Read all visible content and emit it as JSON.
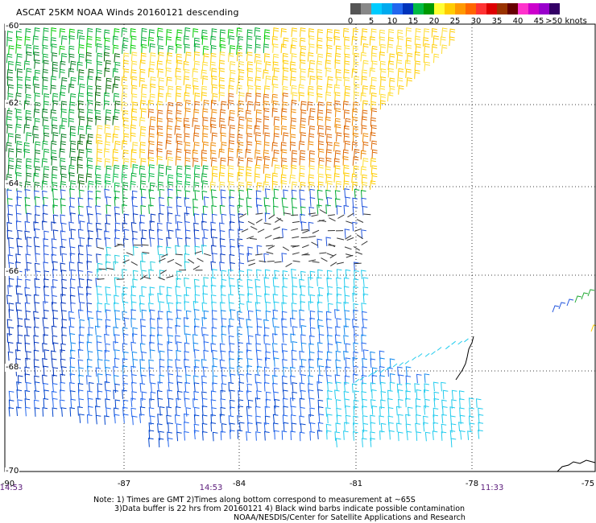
{
  "title": "ASCAT 25KM NOAA Winds 20160121 descending",
  "colorbar": {
    "colors": [
      "#555555",
      "#888888",
      "#00ccff",
      "#00aaee",
      "#2266ee",
      "#0033bb",
      "#00bb44",
      "#009900",
      "#ffff33",
      "#ffcc00",
      "#ff9900",
      "#ff6600",
      "#ff3333",
      "#dd0000",
      "#993300",
      "#660000",
      "#ff33cc",
      "#cc00cc",
      "#9900cc",
      "#330066"
    ],
    "ticks": [
      "0",
      "5",
      "10",
      "15",
      "20",
      "25",
      "30",
      "35",
      "40",
      "45",
      ">50 knots"
    ]
  },
  "map": {
    "lat_labels": [
      "-60",
      "-62",
      "-64",
      "-66",
      "-68",
      "-70"
    ],
    "lon_labels": [
      "-90",
      "-87",
      "-84",
      "-81",
      "-78",
      "-75"
    ],
    "time_labels": [
      "14:53",
      "14:53",
      "11:33"
    ]
  },
  "notes": {
    "line1": "Note: 1) Times are GMT 2)Times along bottom correspond to measurement at ~65S",
    "line2": "3)Data buffer is 22 hrs from 20160121 4) Black wind barbs indicate possible contamination",
    "line3": "NOAA/NESDIS/Center for Satellite Applications and Research"
  }
}
